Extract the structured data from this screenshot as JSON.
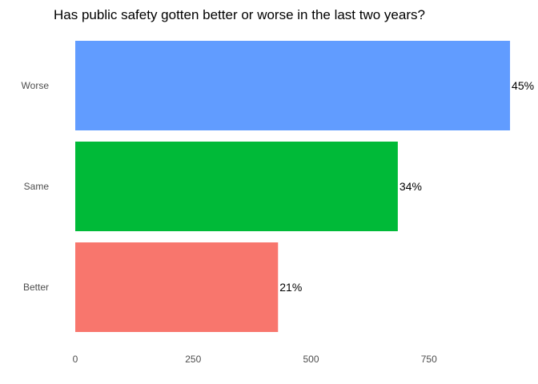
{
  "chart_data": {
    "type": "bar",
    "orientation": "horizontal",
    "title": "Has public safety gotten better or worse in the last two years?",
    "xlabel": "",
    "ylabel": "",
    "categories": [
      "Worse",
      "Same",
      "Better"
    ],
    "values": [
      922,
      684,
      430
    ],
    "data_labels": [
      "45%",
      "34%",
      "21%"
    ],
    "colors": [
      "#619CFF",
      "#00BA38",
      "#F8766D"
    ],
    "xlim": [
      0,
      922
    ],
    "xticks": [
      0,
      250,
      500,
      750
    ],
    "xtick_labels": [
      "0",
      "250",
      "500",
      "750"
    ],
    "grid": false,
    "legend": "none"
  }
}
